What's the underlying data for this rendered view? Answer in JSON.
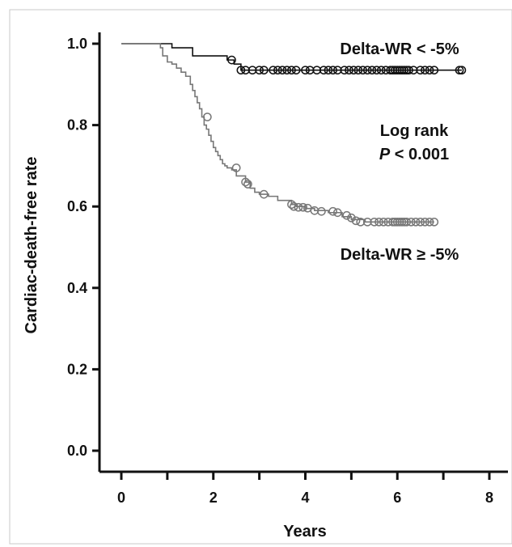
{
  "chart_data": {
    "type": "line",
    "xlabel": "Years",
    "ylabel": "Cardiac-death-free rate",
    "xlim": [
      0,
      8
    ],
    "ylim": [
      0,
      1
    ],
    "x_ticks": [
      "0",
      "2",
      "4",
      "6",
      "8"
    ],
    "y_ticks": [
      "0.0",
      "0.2",
      "0.4",
      "0.6",
      "0.8",
      "1.0"
    ],
    "grid": false,
    "legend": "none",
    "annotations": {
      "upper_label": "Delta-WR < -5%",
      "lower_label": "Delta-WR ≥ -5%",
      "test_label": "Log rank",
      "p_symbol": "P",
      "p_value": " < 0.001"
    },
    "series": [
      {
        "color": "#111111",
        "step_x": [
          0,
          1.1,
          1.55,
          2.3,
          2.45,
          2.6,
          7.4
        ],
        "step_y": [
          1.0,
          0.99,
          0.97,
          0.96,
          0.95,
          0.935,
          0.935
        ],
        "censored": [
          [
            2.4,
            0.96
          ],
          [
            2.6,
            0.935
          ],
          [
            2.7,
            0.935
          ],
          [
            2.85,
            0.935
          ],
          [
            3.0,
            0.935
          ],
          [
            3.1,
            0.935
          ],
          [
            3.3,
            0.935
          ],
          [
            3.4,
            0.935
          ],
          [
            3.5,
            0.935
          ],
          [
            3.6,
            0.935
          ],
          [
            3.7,
            0.935
          ],
          [
            3.8,
            0.935
          ],
          [
            4.0,
            0.935
          ],
          [
            4.1,
            0.935
          ],
          [
            4.25,
            0.935
          ],
          [
            4.4,
            0.935
          ],
          [
            4.5,
            0.935
          ],
          [
            4.6,
            0.935
          ],
          [
            4.7,
            0.935
          ],
          [
            4.85,
            0.935
          ],
          [
            4.95,
            0.935
          ],
          [
            5.05,
            0.935
          ],
          [
            5.15,
            0.935
          ],
          [
            5.25,
            0.935
          ],
          [
            5.35,
            0.935
          ],
          [
            5.45,
            0.935
          ],
          [
            5.55,
            0.935
          ],
          [
            5.65,
            0.935
          ],
          [
            5.75,
            0.935
          ],
          [
            5.85,
            0.935
          ],
          [
            5.9,
            0.935
          ],
          [
            5.95,
            0.935
          ],
          [
            6.0,
            0.935
          ],
          [
            6.05,
            0.935
          ],
          [
            6.1,
            0.935
          ],
          [
            6.15,
            0.935
          ],
          [
            6.2,
            0.935
          ],
          [
            6.25,
            0.935
          ],
          [
            6.35,
            0.935
          ],
          [
            6.5,
            0.935
          ],
          [
            6.6,
            0.935
          ],
          [
            6.7,
            0.935
          ],
          [
            6.8,
            0.935
          ],
          [
            7.35,
            0.935
          ],
          [
            7.4,
            0.935
          ]
        ]
      },
      {
        "color": "#777777",
        "step_x": [
          0,
          0.85,
          0.9,
          1.0,
          1.1,
          1.2,
          1.3,
          1.4,
          1.5,
          1.55,
          1.6,
          1.65,
          1.7,
          1.75,
          1.8,
          1.85,
          1.9,
          1.95,
          2.0,
          2.05,
          2.1,
          2.15,
          2.2,
          2.25,
          2.3,
          2.4,
          2.5,
          2.7,
          2.8,
          2.9,
          3.0,
          3.2,
          3.4,
          3.7,
          3.8,
          4.0,
          4.2,
          4.5,
          4.8,
          5.0,
          5.3,
          6.8
        ],
        "step_y": [
          1.0,
          0.99,
          0.97,
          0.955,
          0.95,
          0.94,
          0.93,
          0.92,
          0.9,
          0.885,
          0.87,
          0.855,
          0.84,
          0.82,
          0.8,
          0.79,
          0.775,
          0.76,
          0.745,
          0.735,
          0.725,
          0.715,
          0.705,
          0.7,
          0.695,
          0.69,
          0.675,
          0.66,
          0.645,
          0.635,
          0.63,
          0.625,
          0.615,
          0.605,
          0.6,
          0.595,
          0.59,
          0.585,
          0.575,
          0.568,
          0.562,
          0.562
        ],
        "censored": [
          [
            1.87,
            0.82
          ],
          [
            2.5,
            0.695
          ],
          [
            2.7,
            0.66
          ],
          [
            2.75,
            0.655
          ],
          [
            3.1,
            0.63
          ],
          [
            3.7,
            0.605
          ],
          [
            3.75,
            0.6
          ],
          [
            3.85,
            0.598
          ],
          [
            3.95,
            0.598
          ],
          [
            4.05,
            0.596
          ],
          [
            4.2,
            0.59
          ],
          [
            4.35,
            0.588
          ],
          [
            4.6,
            0.588
          ],
          [
            4.7,
            0.585
          ],
          [
            4.9,
            0.578
          ],
          [
            5.0,
            0.572
          ],
          [
            5.1,
            0.565
          ],
          [
            5.2,
            0.562
          ],
          [
            5.35,
            0.562
          ],
          [
            5.5,
            0.562
          ],
          [
            5.6,
            0.562
          ],
          [
            5.7,
            0.562
          ],
          [
            5.8,
            0.562
          ],
          [
            5.9,
            0.562
          ],
          [
            5.95,
            0.562
          ],
          [
            6.0,
            0.562
          ],
          [
            6.05,
            0.562
          ],
          [
            6.1,
            0.562
          ],
          [
            6.15,
            0.562
          ],
          [
            6.2,
            0.562
          ],
          [
            6.3,
            0.562
          ],
          [
            6.4,
            0.562
          ],
          [
            6.5,
            0.562
          ],
          [
            6.6,
            0.562
          ],
          [
            6.7,
            0.562
          ],
          [
            6.8,
            0.562
          ]
        ]
      }
    ]
  }
}
